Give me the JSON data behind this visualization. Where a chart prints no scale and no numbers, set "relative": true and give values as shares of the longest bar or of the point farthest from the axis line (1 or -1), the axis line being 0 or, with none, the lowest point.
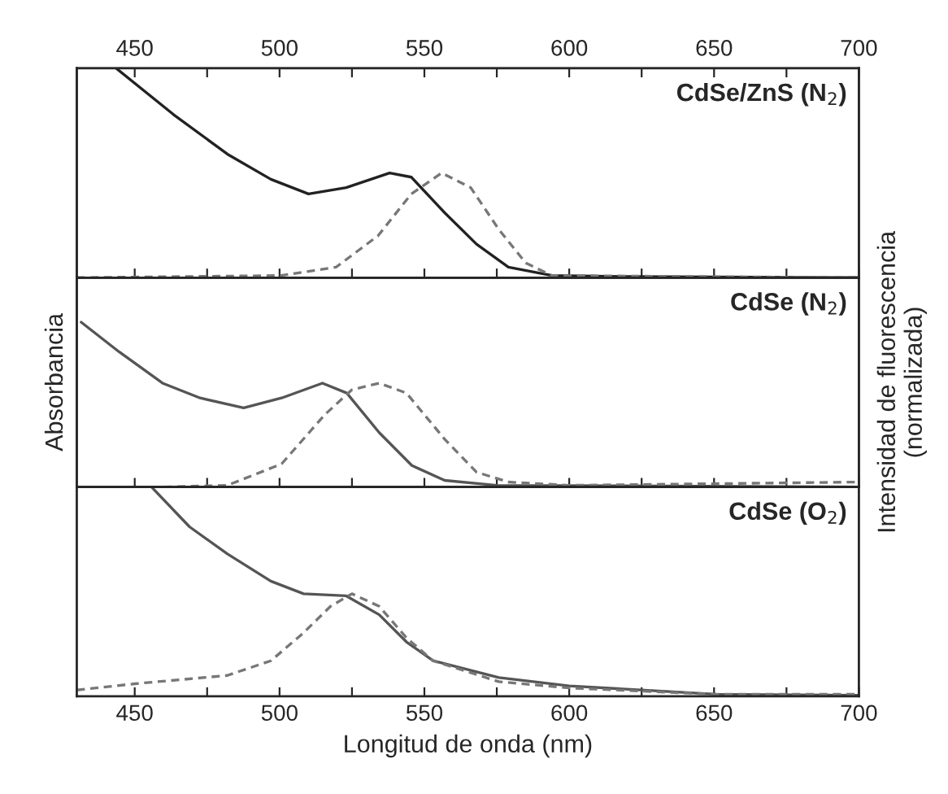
{
  "chart_data": [
    {
      "type": "line",
      "title": "CdSe/ZnS (N$_{2}$)",
      "relative": true,
      "tick_labels": false,
      "xlim": [
        430,
        700
      ],
      "xticks": [
        {
          "value": 450,
          "label": null
        },
        {
          "value": 475,
          "label": null
        },
        {
          "value": 500,
          "label": null
        },
        {
          "value": 525,
          "label": null
        },
        {
          "value": 550,
          "label": null
        },
        {
          "value": 575,
          "label": null
        },
        {
          "value": 600,
          "label": null
        },
        {
          "value": 625,
          "label": null
        },
        {
          "value": 650,
          "label": null
        },
        {
          "value": 675,
          "label": null
        },
        {
          "value": 700,
          "label": null
        }
      ],
      "x2lim": [
        430,
        700
      ],
      "x2ticks": [
        450,
        {
          "value": 475,
          "label": null
        },
        500,
        {
          "value": 525,
          "label": null
        },
        550,
        {
          "value": 575,
          "label": null
        },
        600,
        {
          "value": 625,
          "label": null
        },
        650,
        {
          "value": 675,
          "label": null
        },
        700
      ],
      "series": [
        {
          "color": "#222222",
          "line_style": "solid",
          "x": [
            443.6,
            463.3,
            482,
            497,
            510,
            523,
            538,
            545.5,
            557,
            568,
            579,
            594,
            620,
            700
          ],
          "values": [
            1.0,
            0.78,
            0.59,
            0.47,
            0.4,
            0.43,
            0.5,
            0.48,
            0.31,
            0.16,
            0.05,
            0.01,
            0.005,
            0
          ]
        },
        {
          "color": "#777777",
          "line_style": "dashed",
          "x": [
            430,
            500.6,
            519.5,
            534,
            545.5,
            556,
            566,
            575.7,
            585,
            594,
            700
          ],
          "values": [
            0,
            0.01,
            0.05,
            0.2,
            0.4,
            0.5,
            0.43,
            0.23,
            0.07,
            0.01,
            0
          ]
        }
      ]
    },
    {
      "type": "line",
      "title": "CdSe (N$_{2}$)",
      "ylabel": "Absorbancia",
      "y2label": "Intensidad de fluorescencia\n(normalizada)",
      "relative": true,
      "tick_labels": false,
      "xlim": [
        430,
        700
      ],
      "xticks": [
        {
          "value": 450,
          "label": null
        },
        {
          "value": 475,
          "label": null
        },
        {
          "value": 500,
          "label": null
        },
        {
          "value": 525,
          "label": null
        },
        {
          "value": 550,
          "label": null
        },
        {
          "value": 575,
          "label": null
        },
        {
          "value": 600,
          "label": null
        },
        {
          "value": 625,
          "label": null
        },
        {
          "value": 650,
          "label": null
        },
        {
          "value": 675,
          "label": null
        },
        {
          "value": 700,
          "label": null
        }
      ],
      "series": [
        {
          "color": "#555555",
          "line_style": "solid",
          "x": [
            431.5,
            444.6,
            459.6,
            472.6,
            487.6,
            500.7,
            514.8,
            523.2,
            534.4,
            545.7,
            557,
            575,
            700
          ],
          "values": [
            1.0,
            0.82,
            0.63,
            0.54,
            0.48,
            0.54,
            0.63,
            0.57,
            0.33,
            0.13,
            0.04,
            0.01,
            0
          ]
        },
        {
          "color": "#777777",
          "line_style": "dashed",
          "x": [
            460,
            482,
            500.7,
            515.7,
            525,
            534.4,
            543.8,
            557,
            568,
            579,
            600,
            700
          ],
          "values": [
            0,
            0.01,
            0.14,
            0.44,
            0.59,
            0.63,
            0.57,
            0.29,
            0.09,
            0.03,
            0.01,
            0.03
          ]
        }
      ]
    },
    {
      "type": "line",
      "title": "CdSe (O$_{2}$)",
      "xlabel": "Longitud de onda (nm)",
      "relative": true,
      "tick_labels": "x",
      "xlim": [
        430,
        700
      ],
      "xticks": [
        450,
        {
          "value": 475,
          "label": null
        },
        500,
        {
          "value": 525,
          "label": null
        },
        550,
        {
          "value": 575,
          "label": null
        },
        600,
        {
          "value": 625,
          "label": null
        },
        650,
        {
          "value": 675,
          "label": null
        },
        700
      ],
      "series": [
        {
          "color": "#555555",
          "line_style": "solid",
          "x": [
            455.8,
            468.9,
            482,
            497,
            508.3,
            523,
            534.4,
            543.8,
            553,
            575.7,
            600,
            650.6,
            700
          ],
          "values": [
            1.0,
            0.81,
            0.68,
            0.55,
            0.49,
            0.48,
            0.39,
            0.26,
            0.17,
            0.09,
            0.05,
            0.01,
            0.005
          ]
        },
        {
          "color": "#777777",
          "line_style": "dashed",
          "x": [
            430,
            450,
            482,
            497,
            508,
            517.6,
            525,
            534.4,
            543.8,
            553,
            575.7,
            600,
            650,
            700
          ],
          "values": [
            0.03,
            0.06,
            0.1,
            0.17,
            0.3,
            0.43,
            0.49,
            0.43,
            0.28,
            0.17,
            0.07,
            0.04,
            0.01,
            0.01
          ]
        }
      ]
    }
  ]
}
